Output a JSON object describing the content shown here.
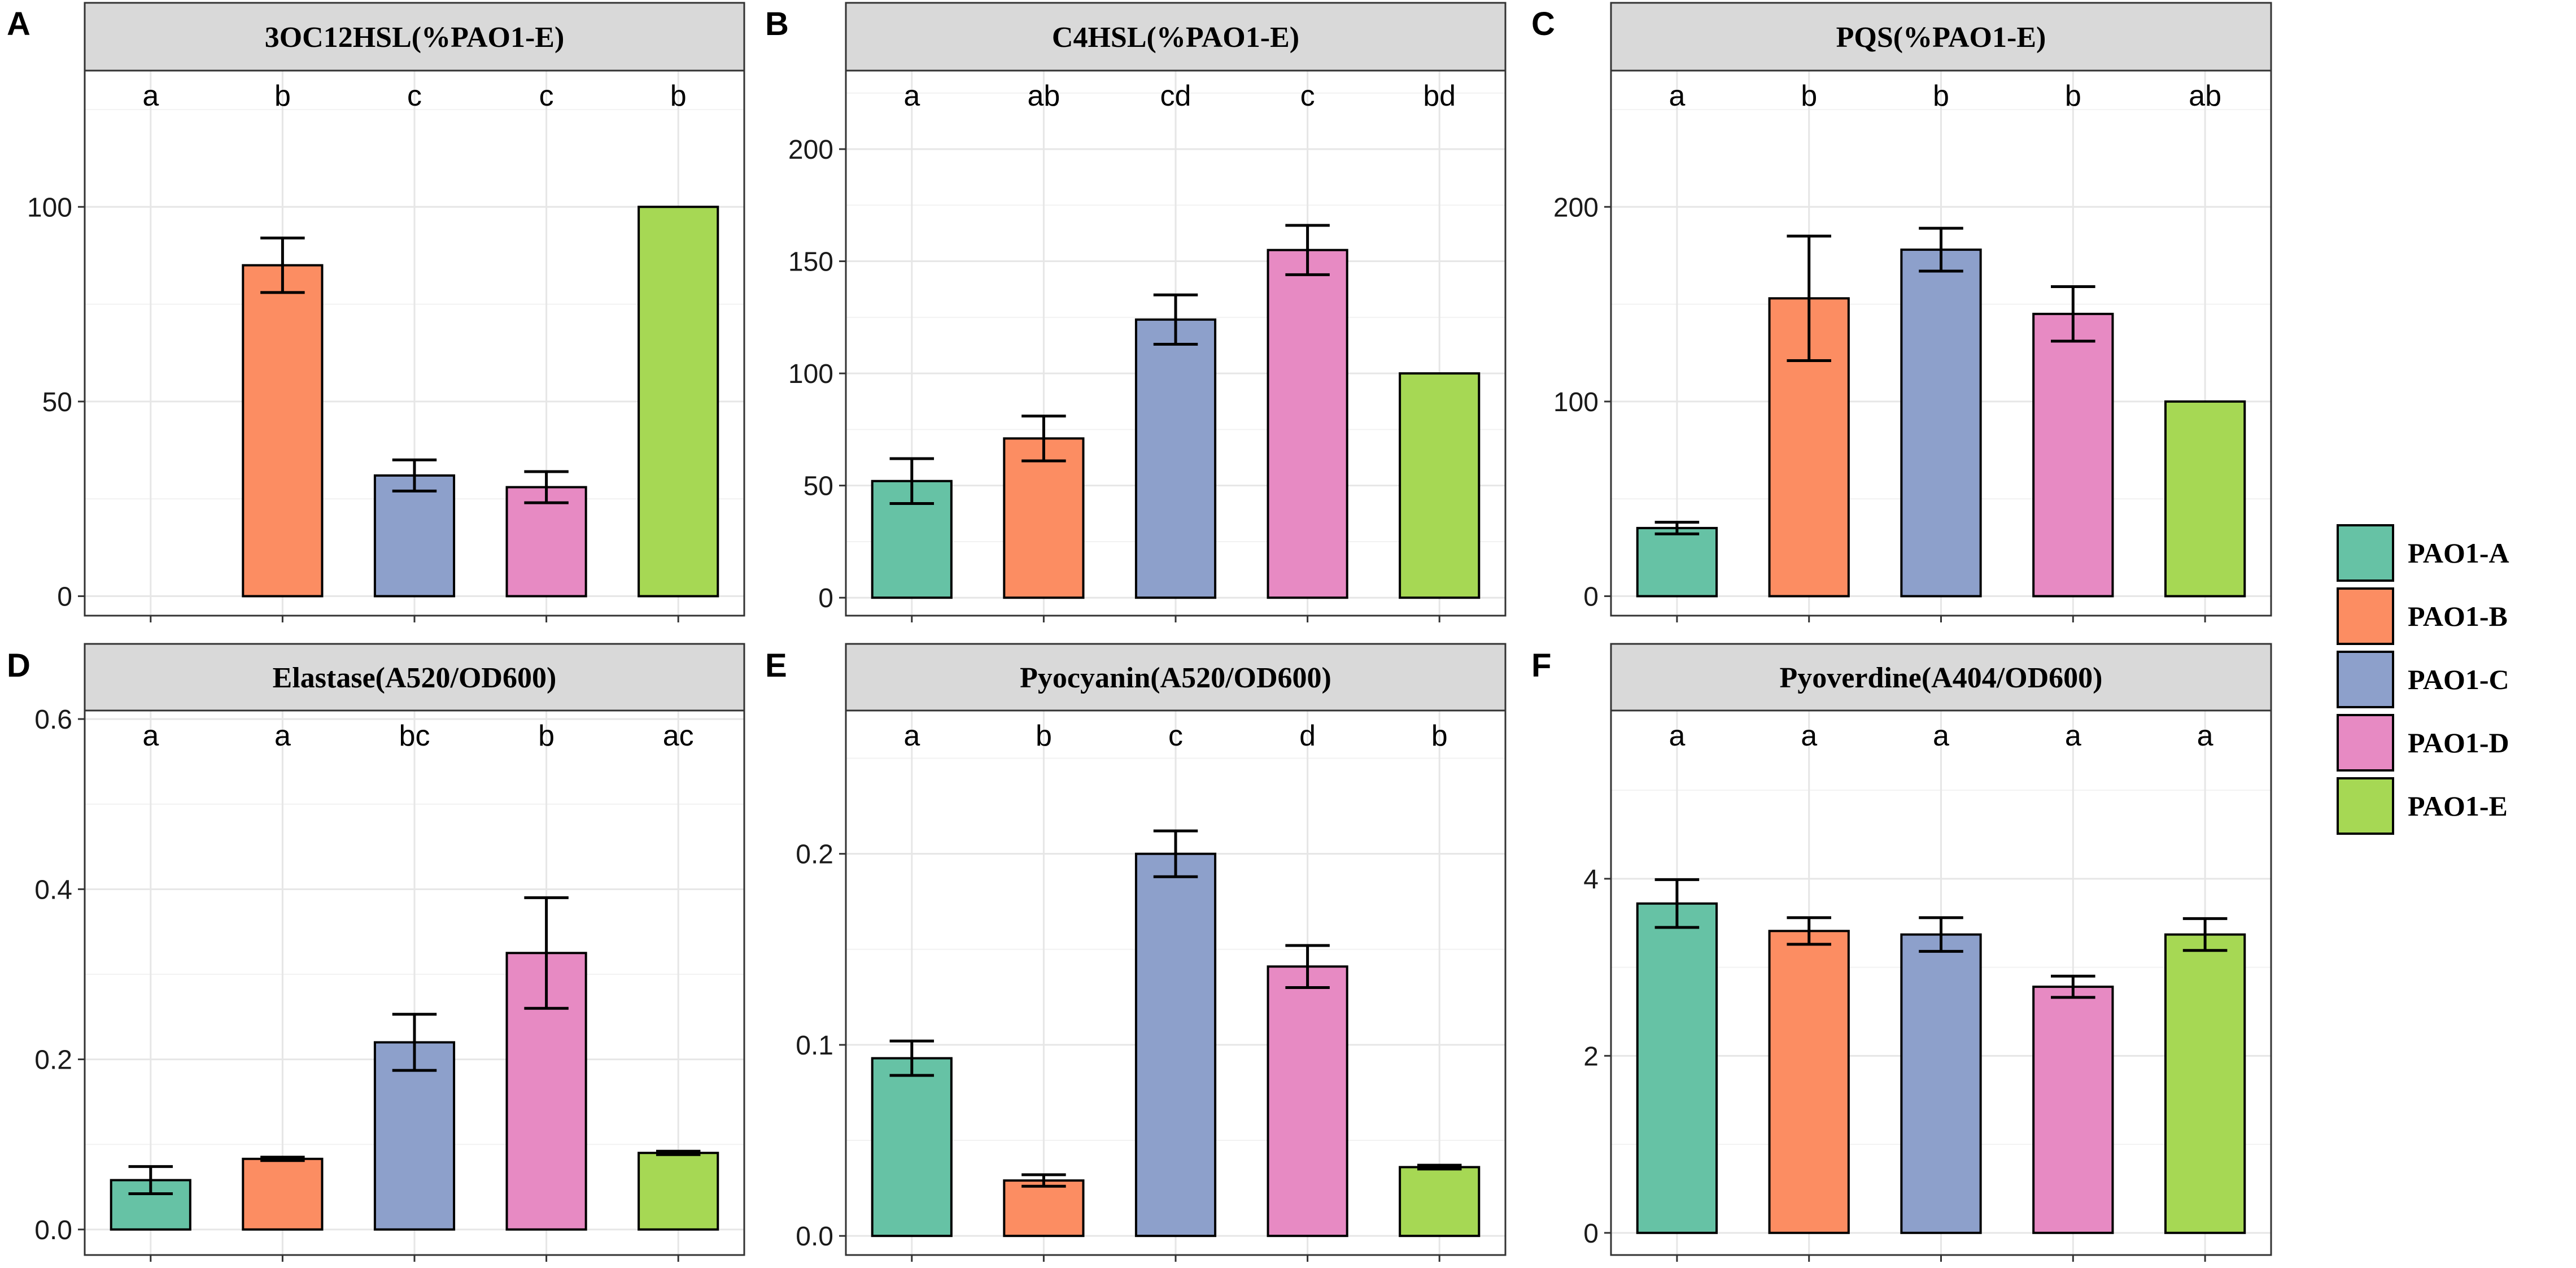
{
  "figure": {
    "legend": {
      "title": "",
      "placement": "right",
      "entries": [
        {
          "label": "PAO1-A",
          "color": "#66c2a5"
        },
        {
          "label": "PAO1-B",
          "color": "#fc8d62"
        },
        {
          "label": "PAO1-C",
          "color": "#8da0cb"
        },
        {
          "label": "PAO1-D",
          "color": "#e78ac3"
        },
        {
          "label": "PAO1-E",
          "color": "#a6d854"
        }
      ]
    }
  },
  "chart_data": [
    {
      "panel_letter": "A",
      "type": "bar",
      "title": "3OC12HSL(%PAO1-E)",
      "categories": [
        "PAO1-A",
        "PAO1-B",
        "PAO1-C",
        "PAO1-D",
        "PAO1-E"
      ],
      "values": [
        0,
        85,
        31,
        28,
        100
      ],
      "error": [
        0,
        7,
        4,
        4,
        0
      ],
      "significance": [
        "a",
        "b",
        "c",
        "c",
        "b"
      ],
      "ylim": [
        -5,
        135
      ],
      "yticks": [
        0,
        50,
        100
      ],
      "ytick_labels": [
        "0",
        "50",
        "100"
      ],
      "xlabel": "",
      "ylabel": "",
      "grid": true
    },
    {
      "panel_letter": "B",
      "type": "bar",
      "title": "C4HSL(%PAO1-E)",
      "categories": [
        "PAO1-A",
        "PAO1-B",
        "PAO1-C",
        "PAO1-D",
        "PAO1-E"
      ],
      "values": [
        52,
        71,
        124,
        155,
        100
      ],
      "error": [
        10,
        10,
        11,
        11,
        0
      ],
      "significance": [
        "a",
        "ab",
        "cd",
        "c",
        "bd"
      ],
      "ylim": [
        -8,
        235
      ],
      "yticks": [
        0,
        50,
        100,
        150,
        200
      ],
      "ytick_labels": [
        "0",
        "50",
        "100",
        "150",
        "200"
      ],
      "xlabel": "",
      "ylabel": "",
      "grid": true
    },
    {
      "panel_letter": "C",
      "type": "bar",
      "title": "PQS(%PAO1-E)",
      "categories": [
        "PAO1-A",
        "PAO1-B",
        "PAO1-C",
        "PAO1-D",
        "PAO1-E"
      ],
      "values": [
        35,
        153,
        178,
        145,
        100
      ],
      "error": [
        3,
        32,
        11,
        14,
        0
      ],
      "significance": [
        "a",
        "b",
        "b",
        "b",
        "ab"
      ],
      "ylim": [
        -10,
        270
      ],
      "yticks": [
        0,
        100,
        200
      ],
      "ytick_labels": [
        "0",
        "100",
        "200"
      ],
      "xlabel": "",
      "ylabel": "",
      "grid": true
    },
    {
      "panel_letter": "D",
      "type": "bar",
      "title": "Elastase(A520/OD600)",
      "categories": [
        "PAO1-A",
        "PAO1-B",
        "PAO1-C",
        "PAO1-D",
        "PAO1-E"
      ],
      "values": [
        0.058,
        0.083,
        0.22,
        0.325,
        0.09
      ],
      "error": [
        0.016,
        0.002,
        0.033,
        0.065,
        0.002
      ],
      "significance": [
        "a",
        "a",
        "bc",
        "b",
        "ac"
      ],
      "ylim": [
        -0.03,
        0.61
      ],
      "yticks": [
        0,
        0.2,
        0.4,
        0.6
      ],
      "ytick_labels": [
        "0.0",
        "0.2",
        "0.4",
        "0.6"
      ],
      "xlabel": "",
      "ylabel": "",
      "grid": true
    },
    {
      "panel_letter": "E",
      "type": "bar",
      "title": "Pyocyanin(A520/OD600)",
      "categories": [
        "PAO1-A",
        "PAO1-B",
        "PAO1-C",
        "PAO1-D",
        "PAO1-E"
      ],
      "values": [
        0.093,
        0.029,
        0.2,
        0.141,
        0.036
      ],
      "error": [
        0.009,
        0.003,
        0.012,
        0.011,
        0.001
      ],
      "significance": [
        "a",
        "b",
        "c",
        "d",
        "b"
      ],
      "ylim": [
        -0.01,
        0.275
      ],
      "yticks": [
        0,
        0.1,
        0.2
      ],
      "ytick_labels": [
        "0.0",
        "0.1",
        "0.2"
      ],
      "xlabel": "",
      "ylabel": "",
      "grid": true
    },
    {
      "panel_letter": "F",
      "type": "bar",
      "title": "Pyoverdine(A404/OD600)",
      "categories": [
        "PAO1-A",
        "PAO1-B",
        "PAO1-C",
        "PAO1-D",
        "PAO1-E"
      ],
      "values": [
        3.72,
        3.41,
        3.37,
        2.78,
        3.37
      ],
      "error": [
        0.27,
        0.15,
        0.19,
        0.12,
        0.18
      ],
      "significance": [
        "a",
        "a",
        "a",
        "a",
        "a"
      ],
      "ylim": [
        -0.25,
        5.9
      ],
      "yticks": [
        0,
        2,
        4
      ],
      "ytick_labels": [
        "0",
        "2",
        "4"
      ],
      "xlabel": "",
      "ylabel": "",
      "grid": true
    }
  ]
}
